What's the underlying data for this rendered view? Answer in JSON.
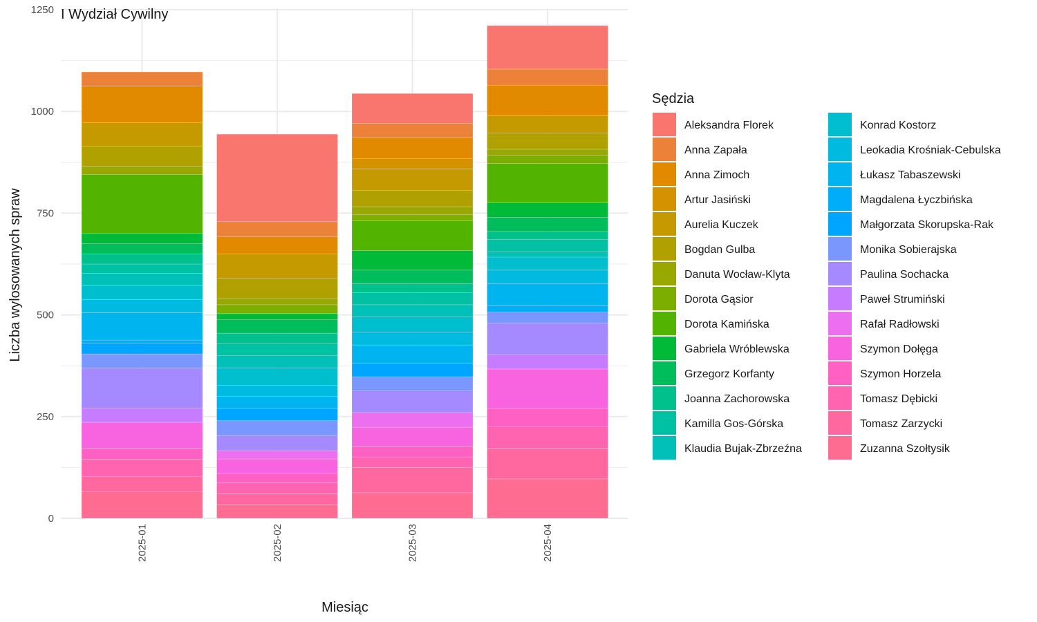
{
  "chart_data": {
    "type": "bar",
    "stacked": true,
    "title": "I Wydział Cywilny",
    "xlabel": "Miesiąc",
    "ylabel": "Liczba wylosowanych spraw",
    "legend_title": "Sędzia",
    "legend_position": "right",
    "grid": true,
    "ylim": [
      0,
      1250
    ],
    "yticks": [
      0,
      250,
      500,
      750,
      1000,
      1250
    ],
    "categories": [
      "2025-01",
      "2025-02",
      "2025-03",
      "2025-04"
    ],
    "series": [
      {
        "name": "Zuzanna Szołtysik",
        "color": "#FF6C91",
        "values": [
          65,
          33,
          63,
          97
        ]
      },
      {
        "name": "Tomasz Zarzycki",
        "color": "#FF689F",
        "values": [
          38,
          27,
          62,
          75
        ]
      },
      {
        "name": "Tomasz Dębicki",
        "color": "#FF64B0",
        "values": [
          42,
          27,
          26,
          53
        ]
      },
      {
        "name": "Szymon Horzela",
        "color": "#FF61C3",
        "values": [
          27,
          23,
          25,
          45
        ]
      },
      {
        "name": "Szymon Dołęga",
        "color": "#F863DF",
        "values": [
          64,
          36,
          48,
          97
        ]
      },
      {
        "name": "Rafał Radłowski",
        "color": "#EB6FEF",
        "values": [
          0,
          20,
          36,
          0
        ]
      },
      {
        "name": "Paweł Strumiński",
        "color": "#C77CFF",
        "values": [
          35,
          0,
          0,
          35
        ]
      },
      {
        "name": "Paulina Sochacka",
        "color": "#A58AFF",
        "values": [
          98,
          37,
          53,
          78
        ]
      },
      {
        "name": "Monika Sobierajska",
        "color": "#7997FF",
        "values": [
          35,
          37,
          35,
          27
        ]
      },
      {
        "name": "Małgorzata Skorupska-Rak",
        "color": "#00A5FF",
        "values": [
          27,
          30,
          33,
          0
        ]
      },
      {
        "name": "Magdalena Łyczbińska",
        "color": "#00ADF9",
        "values": [
          7,
          0,
          0,
          15
        ]
      },
      {
        "name": "Łukasz Tabaszewski",
        "color": "#00B4EF",
        "values": [
          67,
          30,
          45,
          55
        ]
      },
      {
        "name": "Leokadia Krośniak-Cebulska",
        "color": "#00BAE0",
        "values": [
          33,
          27,
          32,
          33
        ]
      },
      {
        "name": "Konrad Kostorz",
        "color": "#00BECD",
        "values": [
          34,
          43,
          37,
          32
        ]
      },
      {
        "name": "Klaudia Bujak-Zbrzeźna",
        "color": "#00C0B8",
        "values": [
          30,
          30,
          30,
          13
        ]
      },
      {
        "name": "Kamilla Gos-Górska",
        "color": "#00C1A3",
        "values": [
          23,
          30,
          30,
          30
        ]
      },
      {
        "name": "Joanna Zachorowska",
        "color": "#00C08B",
        "values": [
          25,
          25,
          22,
          20
        ]
      },
      {
        "name": "Grzegorz Korfanty",
        "color": "#00BD5C",
        "values": [
          25,
          33,
          33,
          35
        ]
      },
      {
        "name": "Gabriela Wróblewska",
        "color": "#00BA38",
        "values": [
          25,
          15,
          48,
          35
        ]
      },
      {
        "name": "Dorota Kamińska",
        "color": "#53B400",
        "values": [
          145,
          0,
          73,
          97
        ]
      },
      {
        "name": "Dorota Gąsior",
        "color": "#7CAE00",
        "values": [
          0,
          22,
          15,
          20
        ]
      },
      {
        "name": "Danuta Wocław-Klyta",
        "color": "#99A800",
        "values": [
          20,
          15,
          20,
          15
        ]
      },
      {
        "name": "Bogdan Gulba",
        "color": "#B0A100",
        "values": [
          50,
          50,
          40,
          40
        ]
      },
      {
        "name": "Aurelia Kuczek",
        "color": "#C49A00",
        "values": [
          57,
          60,
          53,
          42
        ]
      },
      {
        "name": "Artur Jasiński",
        "color": "#D49200",
        "values": [
          0,
          0,
          25,
          0
        ]
      },
      {
        "name": "Anna Zimoch",
        "color": "#E18A00",
        "values": [
          90,
          42,
          52,
          75
        ]
      },
      {
        "name": "Anna Zapała",
        "color": "#EC8239",
        "values": [
          35,
          37,
          35,
          40
        ]
      },
      {
        "name": "Aleksandra Florek",
        "color": "#F8766D",
        "values": [
          0,
          215,
          73,
          107
        ]
      }
    ]
  },
  "legend_columns": [
    [
      "Aleksandra Florek",
      "Anna Zapała",
      "Anna Zimoch",
      "Artur Jasiński",
      "Aurelia Kuczek",
      "Bogdan Gulba",
      "Danuta Wocław-Klyta",
      "Dorota Gąsior",
      "Dorota Kamińska",
      "Gabriela Wróblewska",
      "Grzegorz Korfanty",
      "Joanna Zachorowska",
      "Kamilla Gos-Górska",
      "Klaudia Bujak-Zbrzeźna"
    ],
    [
      "Konrad Kostorz",
      "Leokadia Krośniak-Cebulska",
      "Łukasz Tabaszewski",
      "Magdalena Łyczbińska",
      "Małgorzata Skorupska-Rak",
      "Monika Sobierajska",
      "Paulina Sochacka",
      "Paweł Strumiński",
      "Rafał Radłowski",
      "Szymon Dołęga",
      "Szymon Horzela",
      "Tomasz Dębicki",
      "Tomasz Zarzycki",
      "Zuzanna Szołtysik"
    ]
  ]
}
